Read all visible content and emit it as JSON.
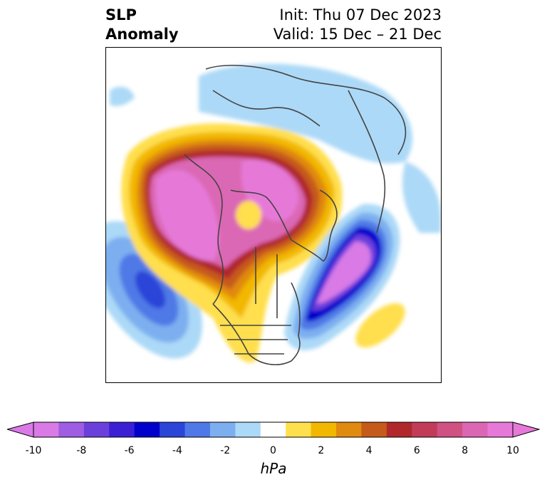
{
  "title": {
    "left_line1": "SLP",
    "left_line2": "Anomaly",
    "init": "Init: Thu 07 Dec 2023",
    "valid": "Valid: 15 Dec – 21 Dec"
  },
  "colorbar": {
    "unit_label": "hPa",
    "ticks": [
      "-10",
      "-8",
      "-6",
      "-4",
      "-2",
      "0",
      "2",
      "4",
      "6",
      "8",
      "10"
    ],
    "colors": [
      "#d97ae6",
      "#9e5de3",
      "#6b3fdc",
      "#3b1fd4",
      "#0000cc",
      "#2a45d8",
      "#4f79e6",
      "#7daff0",
      "#acd9f7",
      "#ffffff",
      "#ffdf4d",
      "#f2b800",
      "#e08a10",
      "#c65a1a",
      "#b0282a",
      "#c23c5a",
      "#cf5282",
      "#db67b4",
      "#e679d8"
    ],
    "range": [
      -10,
      10
    ],
    "extend": "both"
  }
}
